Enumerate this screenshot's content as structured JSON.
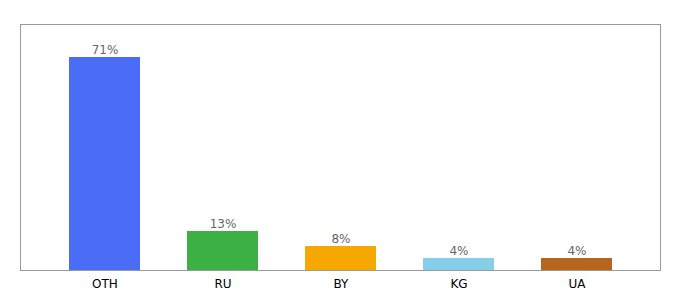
{
  "chart_data": {
    "type": "bar",
    "categories": [
      "OTH",
      "RU",
      "BY",
      "KG",
      "UA"
    ],
    "values": [
      71,
      13,
      8,
      4,
      4
    ],
    "value_labels": [
      "71%",
      "13%",
      "8%",
      "4%",
      "4%"
    ],
    "colors": [
      "#4a6cf7",
      "#3cb043",
      "#f5a800",
      "#87ceeb",
      "#b5651d"
    ],
    "ylim": [
      0,
      82
    ],
    "yticks": [],
    "grid": false,
    "data_labels": true,
    "tick_labels": "x"
  }
}
